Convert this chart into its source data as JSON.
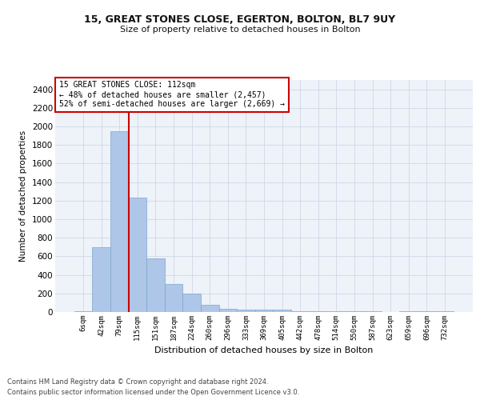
{
  "title1": "15, GREAT STONES CLOSE, EGERTON, BOLTON, BL7 9UY",
  "title2": "Size of property relative to detached houses in Bolton",
  "xlabel": "Distribution of detached houses by size in Bolton",
  "ylabel": "Number of detached properties",
  "bin_labels": [
    "6sqm",
    "42sqm",
    "79sqm",
    "115sqm",
    "151sqm",
    "187sqm",
    "224sqm",
    "260sqm",
    "296sqm",
    "333sqm",
    "369sqm",
    "405sqm",
    "442sqm",
    "478sqm",
    "514sqm",
    "550sqm",
    "587sqm",
    "623sqm",
    "659sqm",
    "696sqm",
    "732sqm"
  ],
  "bar_heights": [
    10,
    700,
    1950,
    1230,
    575,
    305,
    200,
    75,
    35,
    25,
    25,
    25,
    10,
    10,
    5,
    10,
    5,
    0,
    5,
    5,
    5
  ],
  "bar_color": "#aec6e8",
  "bar_edge_color": "#7fa8cc",
  "vline_color": "#cc0000",
  "annotation_text": "15 GREAT STONES CLOSE: 112sqm\n← 48% of detached houses are smaller (2,457)\n52% of semi-detached houses are larger (2,669) →",
  "annotation_box_color": "#ffffff",
  "annotation_box_edge": "#cc0000",
  "ylim": [
    0,
    2500
  ],
  "yticks": [
    0,
    200,
    400,
    600,
    800,
    1000,
    1200,
    1400,
    1600,
    1800,
    2000,
    2200,
    2400
  ],
  "grid_color": "#d0d8e8",
  "background_color": "#eef2f9",
  "footer_line1": "Contains HM Land Registry data © Crown copyright and database right 2024.",
  "footer_line2": "Contains public sector information licensed under the Open Government Licence v3.0."
}
